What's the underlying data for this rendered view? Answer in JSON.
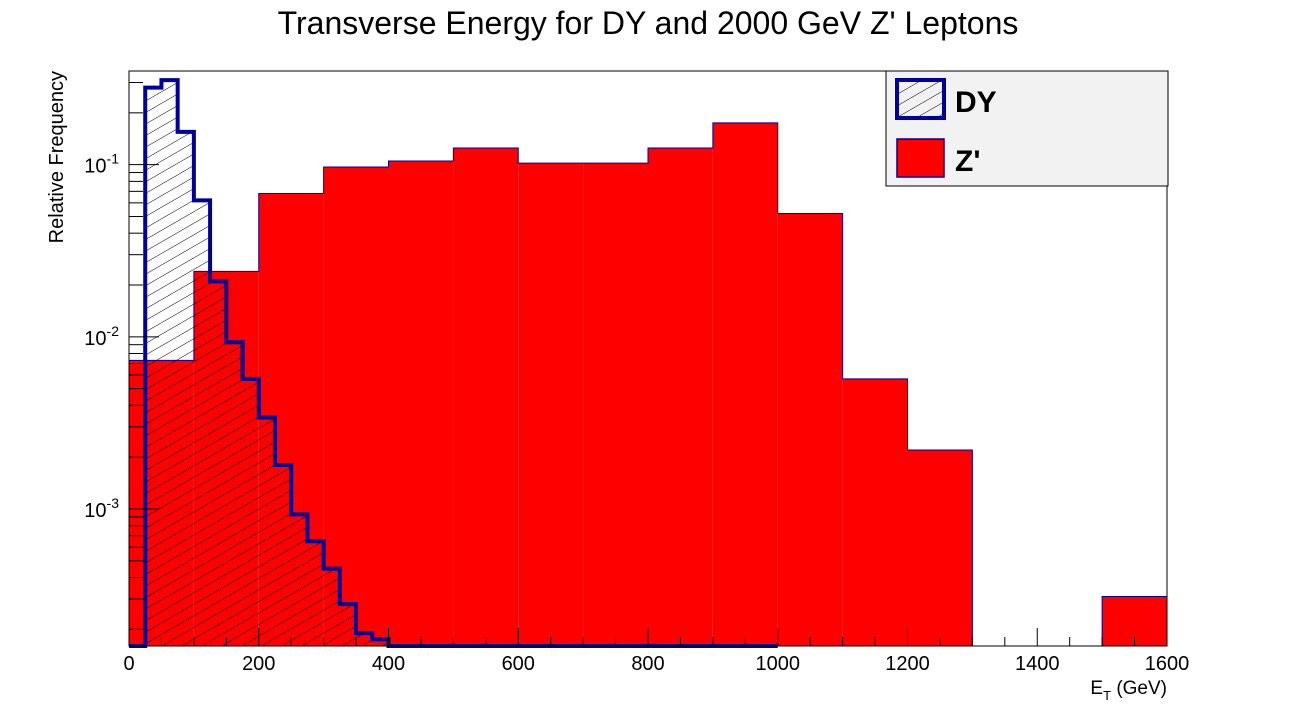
{
  "chart_data": {
    "type": "bar",
    "title": "Transverse Energy for DY and 2000 GeV Z' Leptons",
    "xlabel_main": "E",
    "xlabel_sub": "T",
    "xlabel_unit": " (GeV)",
    "ylabel": "Relative Frequency",
    "xlim": [
      0,
      1600
    ],
    "ylim": [
      0.00016,
      0.35
    ],
    "yscale": "log",
    "x_ticks": [
      0,
      200,
      400,
      600,
      800,
      1000,
      1200,
      1400,
      1600
    ],
    "x_tick_labels": [
      "0",
      "200",
      "400",
      "600",
      "800",
      "1000",
      "1200",
      "1400",
      "1600"
    ],
    "y_ticks": [
      {
        "value": 0.1,
        "base": "10",
        "exp": "-1"
      },
      {
        "value": 0.01,
        "base": "10",
        "exp": "-2"
      },
      {
        "value": 0.001,
        "base": "10",
        "exp": "-3"
      }
    ],
    "legend_position": "top-right",
    "series": [
      {
        "name": "Z'",
        "style": "filled",
        "color": "#ff0000",
        "edges": [
          0,
          100,
          200,
          300,
          400,
          500,
          600,
          700,
          800,
          900,
          1000,
          1100,
          1200,
          1300,
          1400,
          1500,
          1600
        ],
        "values": [
          0.0073,
          0.024,
          0.068,
          0.097,
          0.105,
          0.125,
          0.102,
          0.102,
          0.125,
          0.175,
          0.052,
          0.0057,
          0.0022,
          0,
          0,
          0.00031
        ]
      },
      {
        "name": "DY",
        "style": "hatched-outline",
        "color": "#000099",
        "edges": [
          0,
          25,
          50,
          75,
          100,
          125,
          150,
          175,
          200,
          225,
          250,
          275,
          300,
          325,
          350,
          375,
          400,
          425,
          450,
          475,
          500,
          525,
          550,
          575,
          600,
          625,
          650,
          675,
          700,
          725,
          750,
          775,
          800,
          825,
          850,
          875,
          900,
          925,
          950,
          975,
          1000
        ],
        "values": [
          0,
          0.28,
          0.31,
          0.155,
          0.062,
          0.021,
          0.0093,
          0.0057,
          0.0034,
          0.0018,
          0.00093,
          0.00065,
          0.00045,
          0.00028,
          0.00019,
          0.000175,
          0,
          0,
          0,
          0,
          0,
          0,
          0,
          0,
          0,
          0,
          0,
          0,
          0,
          0,
          0,
          0,
          0,
          0,
          0,
          0,
          0,
          0,
          0,
          0
        ]
      }
    ]
  }
}
